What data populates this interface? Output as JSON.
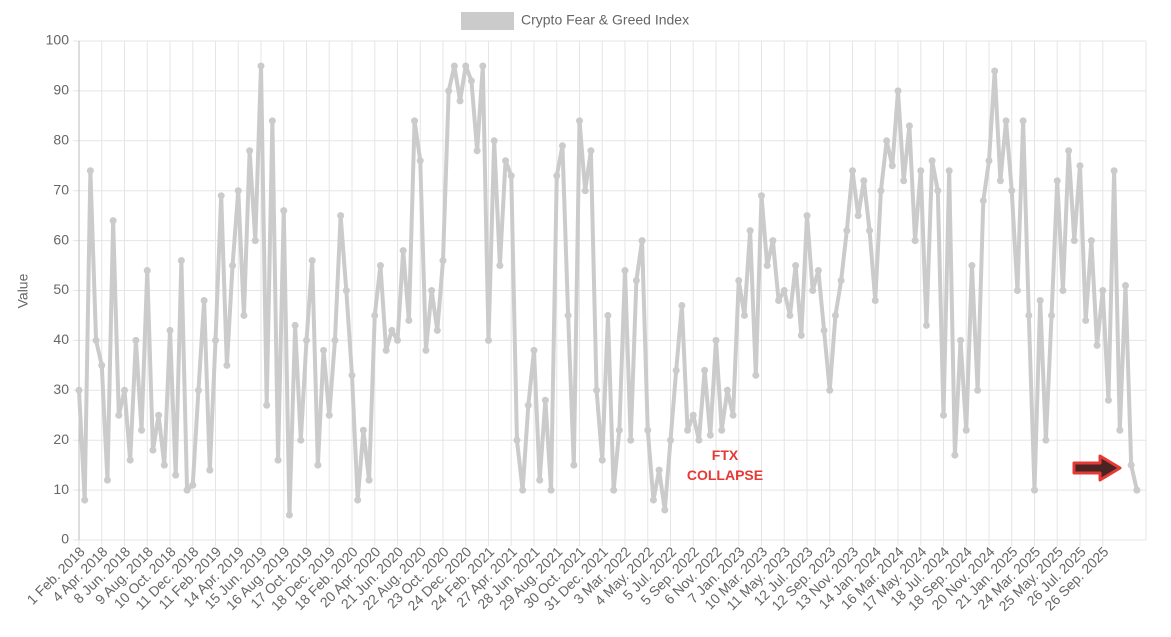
{
  "chart_data": {
    "type": "line",
    "legend": "Crypto Fear & Greed Index",
    "y_label": "Value",
    "annotation_lines": [
      "FTX",
      "COLLAPSE"
    ],
    "annotation_color": "#e53935",
    "grid": true,
    "ylim": [
      0,
      100
    ],
    "yticks": [
      0,
      10,
      20,
      30,
      40,
      50,
      60,
      70,
      80,
      90,
      100
    ],
    "categories": [
      "1 Feb. 2018",
      null,
      null,
      null,
      "4 Apr. 2018",
      null,
      null,
      null,
      "8 Jun. 2018",
      null,
      null,
      null,
      "9 Aug. 2018",
      null,
      null,
      null,
      "10 Oct. 2018",
      null,
      null,
      null,
      "11 Dec. 2018",
      null,
      null,
      null,
      "11 Feb. 2019",
      null,
      null,
      null,
      "14 Apr. 2019",
      null,
      null,
      null,
      "15 Jun. 2019",
      null,
      null,
      null,
      "16 Aug. 2019",
      null,
      null,
      null,
      "17 Oct. 2019",
      null,
      null,
      null,
      "18 Dec. 2019",
      null,
      null,
      null,
      "18 Feb. 2020",
      null,
      null,
      null,
      "20 Apr. 2020",
      null,
      null,
      null,
      "21 Jun. 2020",
      null,
      null,
      null,
      "22 Aug. 2020",
      null,
      null,
      null,
      "23 Oct. 2020",
      null,
      null,
      null,
      "24 Dec. 2020",
      null,
      null,
      null,
      "24 Feb. 2021",
      null,
      null,
      null,
      "27 Apr. 2021",
      null,
      null,
      null,
      "28 Jun. 2021",
      null,
      null,
      null,
      "29 Aug. 2021",
      null,
      null,
      null,
      "30 Oct. 2021",
      null,
      null,
      null,
      "31 Dec. 2021",
      null,
      null,
      null,
      "3 Mar. 2022",
      null,
      null,
      null,
      "4 May. 2022",
      null,
      null,
      null,
      "5 Jul. 2022",
      null,
      null,
      null,
      "5 Sep. 2022",
      null,
      null,
      null,
      "6 Nov. 2022",
      null,
      null,
      null,
      "7 Jan. 2023",
      null,
      null,
      null,
      "10 Mar. 2023",
      null,
      null,
      null,
      "11 May. 2023",
      null,
      null,
      null,
      "12 Jul. 2023",
      null,
      null,
      null,
      "12 Sep. 2023",
      null,
      null,
      null,
      "13 Nov. 2023",
      null,
      null,
      null,
      "14 Jan. 2024",
      null,
      null,
      null,
      "16 Mar. 2024",
      null,
      null,
      null,
      "17 May. 2024",
      null,
      null,
      null,
      "18 Jul. 2024",
      null,
      null,
      null,
      "18 Sep. 2024",
      null,
      null,
      null,
      "20 Nov. 2024",
      null,
      null,
      null,
      "21 Jan. 2025",
      null,
      null,
      null,
      "24 Mar. 2025",
      null,
      null,
      null,
      "25 May. 2025",
      null,
      null,
      null,
      "26 Jul. 2025",
      null,
      null,
      null,
      "26 Sep. 2025",
      null,
      null,
      null,
      null,
      null,
      null
    ],
    "series": [
      {
        "name": "Crypto Fear & Greed Index",
        "color": "#cbcbcb",
        "values": [
          30,
          8,
          74,
          40,
          35,
          12,
          64,
          25,
          30,
          16,
          40,
          22,
          54,
          18,
          25,
          15,
          42,
          13,
          56,
          10,
          11,
          30,
          48,
          14,
          40,
          69,
          35,
          55,
          70,
          45,
          78,
          60,
          95,
          27,
          84,
          16,
          66,
          5,
          43,
          20,
          40,
          56,
          15,
          38,
          25,
          40,
          65,
          50,
          33,
          8,
          22,
          12,
          45,
          55,
          38,
          42,
          40,
          58,
          44,
          84,
          76,
          38,
          50,
          42,
          56,
          90,
          95,
          88,
          95,
          92,
          78,
          95,
          40,
          80,
          55,
          76,
          73,
          20,
          10,
          27,
          38,
          12,
          28,
          10,
          73,
          79,
          45,
          15,
          84,
          70,
          78,
          30,
          16,
          45,
          10,
          22,
          54,
          20,
          52,
          60,
          22,
          8,
          14,
          6,
          20,
          34,
          47,
          22,
          25,
          20,
          34,
          21,
          40,
          22,
          30,
          25,
          52,
          45,
          62,
          33,
          69,
          55,
          60,
          48,
          50,
          45,
          55,
          41,
          65,
          50,
          54,
          42,
          30,
          45,
          52,
          62,
          74,
          65,
          72,
          62,
          48,
          70,
          80,
          75,
          90,
          72,
          83,
          60,
          74,
          43,
          76,
          70,
          25,
          74,
          17,
          40,
          22,
          55,
          30,
          68,
          76,
          94,
          72,
          84,
          70,
          50,
          84,
          45,
          10,
          48,
          20,
          45,
          72,
          50,
          78,
          60,
          75,
          44,
          60,
          39,
          50,
          28,
          74,
          22,
          51,
          15,
          10
        ]
      }
    ]
  }
}
